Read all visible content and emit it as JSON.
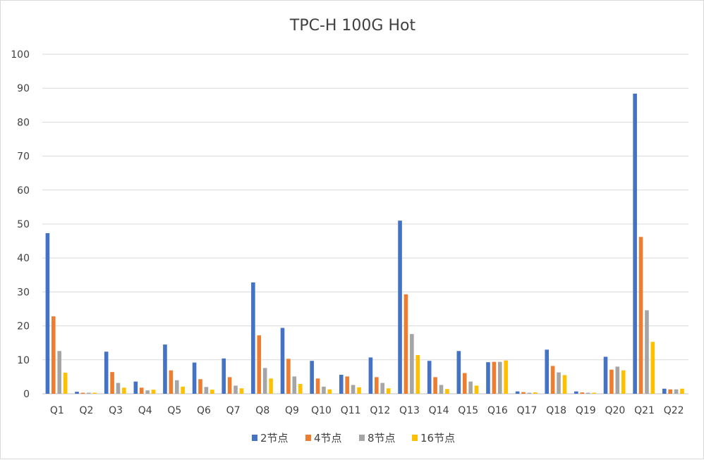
{
  "chart_data": {
    "type": "bar",
    "title": "TPC-H 100G Hot",
    "xlabel": "",
    "ylabel": "",
    "ylim": [
      0,
      100
    ],
    "yticks": [
      0,
      10,
      20,
      30,
      40,
      50,
      60,
      70,
      80,
      90,
      100
    ],
    "grid": true,
    "legend_position": "bottom",
    "categories": [
      "Q1",
      "Q2",
      "Q3",
      "Q4",
      "Q5",
      "Q6",
      "Q7",
      "Q8",
      "Q9",
      "Q10",
      "Q11",
      "Q12",
      "Q13",
      "Q14",
      "Q15",
      "Q16",
      "Q17",
      "Q18",
      "Q19",
      "Q20",
      "Q21",
      "Q22"
    ],
    "series": [
      {
        "name": "2节点",
        "color": "#4472C4",
        "values": [
          47.3,
          0.6,
          12.4,
          3.6,
          14.5,
          9.2,
          10.4,
          32.8,
          19.4,
          9.7,
          5.6,
          10.7,
          51.0,
          9.7,
          12.6,
          9.3,
          0.7,
          13.0,
          0.7,
          10.9,
          88.4,
          1.5
        ]
      },
      {
        "name": "4节点",
        "color": "#ED7D31",
        "values": [
          22.8,
          0.3,
          6.4,
          1.8,
          6.9,
          4.3,
          4.9,
          17.2,
          10.3,
          4.5,
          5.1,
          4.9,
          29.3,
          4.9,
          6.1,
          9.4,
          0.5,
          8.2,
          0.4,
          7.1,
          46.2,
          1.3
        ]
      },
      {
        "name": "8节点",
        "color": "#A5A5A5",
        "values": [
          12.6,
          0.3,
          3.2,
          1.0,
          4.0,
          2.0,
          2.4,
          7.6,
          5.1,
          2.1,
          2.6,
          3.2,
          17.6,
          2.6,
          3.6,
          9.4,
          0.3,
          6.3,
          0.3,
          8.0,
          24.6,
          1.3
        ]
      },
      {
        "name": "16节点",
        "color": "#FFC000",
        "values": [
          6.2,
          0.3,
          1.8,
          1.2,
          2.1,
          1.2,
          1.6,
          4.5,
          2.9,
          1.3,
          1.9,
          1.6,
          11.4,
          1.4,
          2.4,
          9.8,
          0.4,
          5.5,
          0.3,
          6.9,
          15.3,
          1.5
        ]
      }
    ]
  }
}
